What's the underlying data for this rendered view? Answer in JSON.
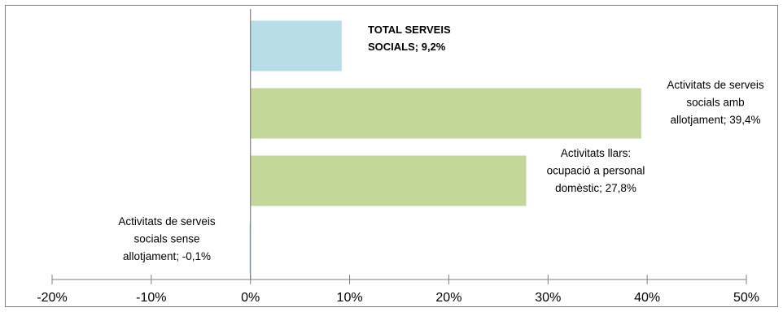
{
  "chart_data": {
    "type": "bar",
    "orientation": "horizontal",
    "categories": [
      "TOTAL SERVEIS SOCIALS",
      "Activitats de serveis socials amb allotjament",
      "Activitats llars: ocupació a personal domèstic",
      "Activitats de serveis socials sense allotjament"
    ],
    "values": [
      9.2,
      39.4,
      27.8,
      -0.1
    ],
    "colors": [
      "#b7dde8",
      "#c4d79b",
      "#c4d79b",
      "#b7dde8"
    ],
    "data_labels": [
      [
        "TOTAL SERVEIS",
        "SOCIALS; 9,2%"
      ],
      [
        "Activitats de serveis",
        "socials amb",
        "allotjament; 39,4%"
      ],
      [
        "Activitats llars:",
        "ocupació a personal",
        "domèstic; 27,8%"
      ],
      [
        "Activitats de serveis",
        "socials sense",
        "allotjament; -0,1%"
      ]
    ],
    "xlim": [
      -20,
      50
    ],
    "xticks": [
      -20,
      -10,
      0,
      10,
      20,
      30,
      40,
      50
    ],
    "xtick_labels": [
      "-20%",
      "-10%",
      "0%",
      "10%",
      "20%",
      "30%",
      "40%",
      "50%"
    ],
    "title": "",
    "xlabel": "",
    "ylabel": "",
    "grid": false,
    "legend": "none"
  }
}
